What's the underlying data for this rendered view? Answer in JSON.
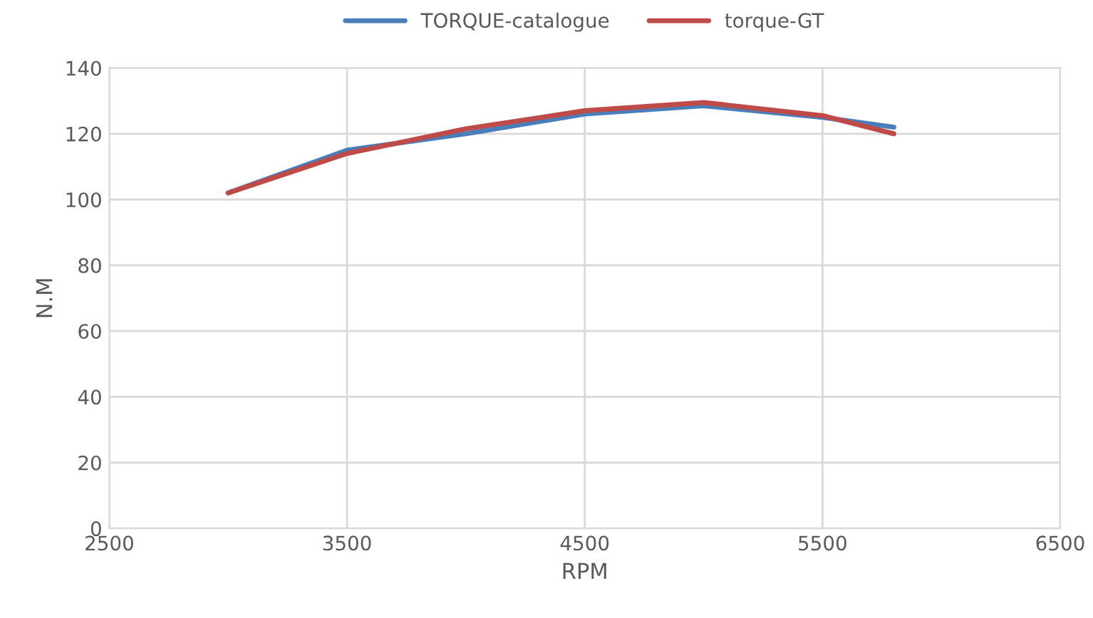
{
  "chart_data": {
    "type": "line",
    "xlabel": "RPM",
    "ylabel": "N.M",
    "x": [
      3000,
      3500,
      4000,
      4500,
      5000,
      5500,
      5800
    ],
    "series": [
      {
        "name": "TORQUE-catalogue",
        "color": "#4a7ebb",
        "values": [
          102,
          115,
          120,
          126,
          128.5,
          125,
          122
        ]
      },
      {
        "name": "torque-GT",
        "color": "#be4b48",
        "values": [
          102,
          114,
          121.5,
          127,
          129.5,
          125.5,
          120
        ]
      }
    ],
    "xlim": [
      2500,
      6500
    ],
    "xticks": [
      2500,
      3500,
      4500,
      5500,
      6500
    ],
    "ylim": [
      0,
      140
    ],
    "yticks": [
      0,
      20,
      40,
      60,
      80,
      100,
      120,
      140
    ],
    "grid": true,
    "legend": "top",
    "marker": "none",
    "line_style": "solid"
  }
}
